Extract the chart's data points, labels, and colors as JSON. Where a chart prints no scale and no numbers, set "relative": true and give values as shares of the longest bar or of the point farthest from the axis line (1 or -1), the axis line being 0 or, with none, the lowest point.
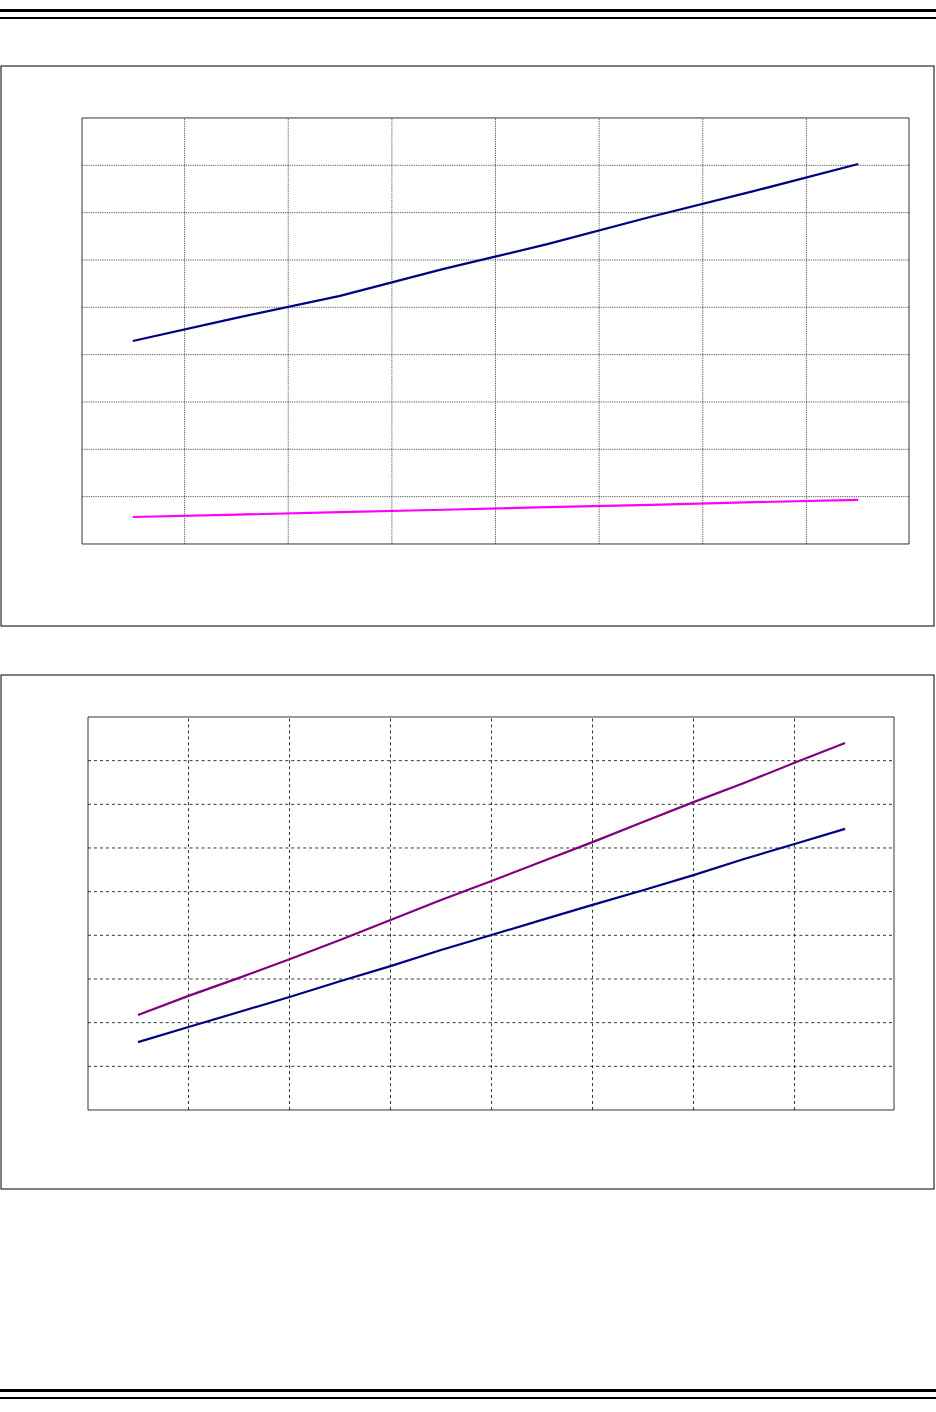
{
  "chart_data": [
    {
      "type": "line",
      "relative": true,
      "grid": true,
      "categories": [
        null,
        null,
        null,
        null,
        null,
        null,
        null,
        null
      ],
      "series": [
        {
          "color": "#000080",
          "values": [
            0.534,
            0.595,
            0.653,
            0.724,
            0.789,
            0.861,
            0.929,
            1
          ]
        },
        {
          "color": "#ff00ff",
          "values": [
            0.071,
            0.077,
            0.084,
            0.09,
            0.097,
            0.103,
            0.11,
            0.116
          ]
        }
      ]
    },
    {
      "type": "line",
      "relative": true,
      "grid": true,
      "categories": [
        null,
        null,
        null,
        null,
        null,
        null,
        null,
        null,
        null,
        null,
        null,
        null,
        null,
        null,
        null
      ],
      "series": [
        {
          "color": "#800080",
          "values": [
            0.259,
            0.311,
            0.36,
            0.411,
            0.463,
            0.518,
            0.572,
            0.624,
            0.677,
            0.73,
            0.785,
            0.839,
            0.891,
            0.946,
            1
          ]
        },
        {
          "color": "#000080",
          "values": [
            0.185,
            0.226,
            0.267,
            0.308,
            0.351,
            0.392,
            0.436,
            0.477,
            0.518,
            0.559,
            0.599,
            0.64,
            0.684,
            0.725,
            0.766
          ]
        }
      ]
    }
  ]
}
